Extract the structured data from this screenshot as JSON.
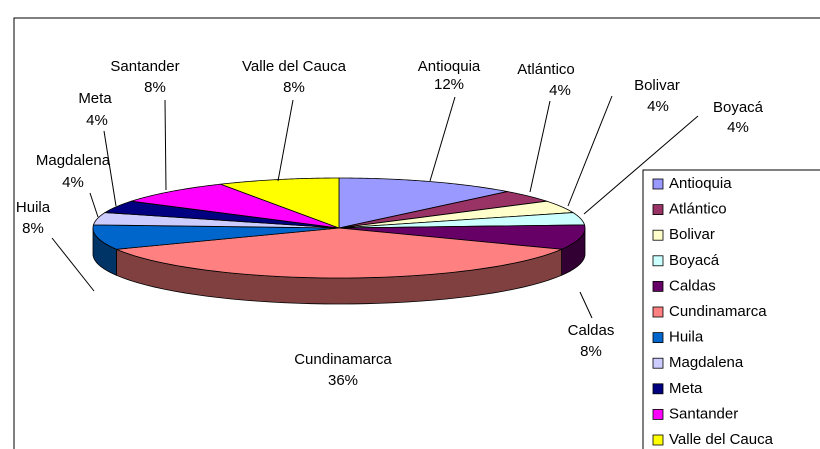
{
  "chart_data": {
    "type": "pie",
    "categories": [
      "Antioquia",
      "Atlántico",
      "Bolivar",
      "Boyacá",
      "Caldas",
      "Cundinamarca",
      "Huila",
      "Magdalena",
      "Meta",
      "Santander",
      "Valle del Cauca"
    ],
    "values": [
      12,
      4,
      4,
      4,
      8,
      36,
      8,
      4,
      4,
      8,
      8
    ],
    "value_labels": [
      "12%",
      "4%",
      "4%",
      "4%",
      "8%",
      "36%",
      "8%",
      "4%",
      "4%",
      "8%",
      "8%"
    ],
    "colors": [
      "#9999ff",
      "#993366",
      "#ffffcc",
      "#ccffff",
      "#660066",
      "#ff8080",
      "#0066cc",
      "#ccccff",
      "#000080",
      "#ff00ff",
      "#ffff00"
    ],
    "legend": "right"
  }
}
